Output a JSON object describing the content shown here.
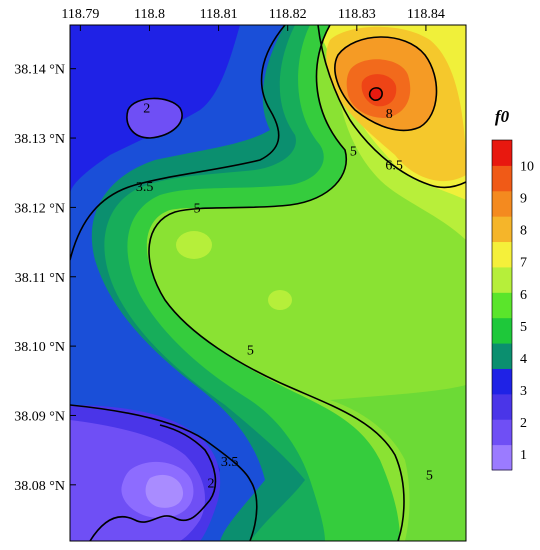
{
  "chart_data": {
    "type": "contour",
    "title": "",
    "xlabel": "",
    "ylabel": "",
    "x_ticks": [
      {
        "value": 118.79,
        "label": "118.79"
      },
      {
        "value": 118.8,
        "label": "118.8"
      },
      {
        "value": 118.81,
        "label": "118.81"
      },
      {
        "value": 118.82,
        "label": "118.82"
      },
      {
        "value": 118.83,
        "label": "118.83"
      },
      {
        "value": 118.84,
        "label": "118.84"
      }
    ],
    "y_ticks": [
      {
        "value": 38.14,
        "label": "38.14 °N"
      },
      {
        "value": 38.13,
        "label": "38.13 °N"
      },
      {
        "value": 38.12,
        "label": "38.12 °N"
      },
      {
        "value": 38.11,
        "label": "38.11 °N"
      },
      {
        "value": 38.1,
        "label": "38.10 °N"
      },
      {
        "value": 38.09,
        "label": "38.09 °N"
      },
      {
        "value": 38.08,
        "label": "38.08 °N"
      }
    ],
    "xlim": [
      118.7885,
      118.8458
    ],
    "ylim": [
      38.0719,
      38.1463
    ],
    "colorbar": {
      "title": "f0",
      "levels": [
        1,
        2,
        3,
        4,
        5,
        6,
        7,
        8,
        9,
        10
      ],
      "labels": [
        "1",
        "2",
        "3",
        "4",
        "5",
        "6",
        "7",
        "8",
        "9",
        "10"
      ],
      "colors": [
        "#9b7bff",
        "#6f4ff5",
        "#4a35e8",
        "#1f22e6",
        "#0b8f6f",
        "#1ec83a",
        "#5ae52b",
        "#b6ef3a",
        "#f5f03a",
        "#f5b52a",
        "#f48a1f",
        "#f05a17",
        "#e8180f"
      ]
    },
    "contour_labels": [
      {
        "text": "2",
        "x": 118.7996,
        "y": 38.1344
      },
      {
        "text": "3.5",
        "x": 118.7993,
        "y": 38.1231
      },
      {
        "text": "5",
        "x": 118.8069,
        "y": 38.12
      },
      {
        "text": "8",
        "x": 118.8347,
        "y": 38.1336
      },
      {
        "text": "6.5",
        "x": 118.8354,
        "y": 38.1262
      },
      {
        "text": "5",
        "x": 118.8295,
        "y": 38.1282
      },
      {
        "text": "5",
        "x": 118.8146,
        "y": 38.0995
      },
      {
        "text": "3.5",
        "x": 118.8116,
        "y": 38.0834
      },
      {
        "text": "2",
        "x": 118.8089,
        "y": 38.0803
      },
      {
        "text": "5",
        "x": 118.8405,
        "y": 38.0815
      }
    ],
    "peak": {
      "value": 10,
      "x": 118.8337,
      "y": 38.1365
    },
    "grid": false,
    "legend": "right"
  }
}
